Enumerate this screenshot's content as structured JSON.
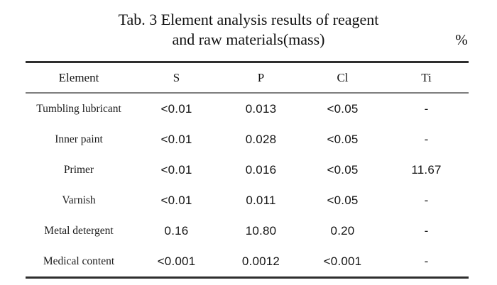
{
  "title": {
    "line1": "Tab. 3 Element analysis results of reagent",
    "line2": "and raw materials(mass)",
    "unit": "%"
  },
  "table": {
    "columns": [
      "Element",
      "S",
      "P",
      "Cl",
      "Ti"
    ],
    "rows": [
      {
        "label": "Tumbling lubricant",
        "values": [
          "<0.01",
          "0.013",
          "<0.05",
          "-"
        ]
      },
      {
        "label": "Inner paint",
        "values": [
          "<0.01",
          "0.028",
          "<0.05",
          "-"
        ]
      },
      {
        "label": "Primer",
        "values": [
          "<0.01",
          "0.016",
          "<0.05",
          "11.67"
        ]
      },
      {
        "label": "Varnish",
        "values": [
          "<0.01",
          "0.011",
          "<0.05",
          "-"
        ]
      },
      {
        "label": "Metal detergent",
        "values": [
          "0.16",
          "10.80",
          "0.20",
          "-"
        ]
      },
      {
        "label": "Medical content",
        "values": [
          "<0.001",
          "0.0012",
          "<0.001",
          "-"
        ]
      }
    ]
  },
  "colors": {
    "background": "#ffffff",
    "text": "#1b1b1b",
    "rule_heavy": "#2e2e2e",
    "rule_light": "#7e7e7e"
  }
}
